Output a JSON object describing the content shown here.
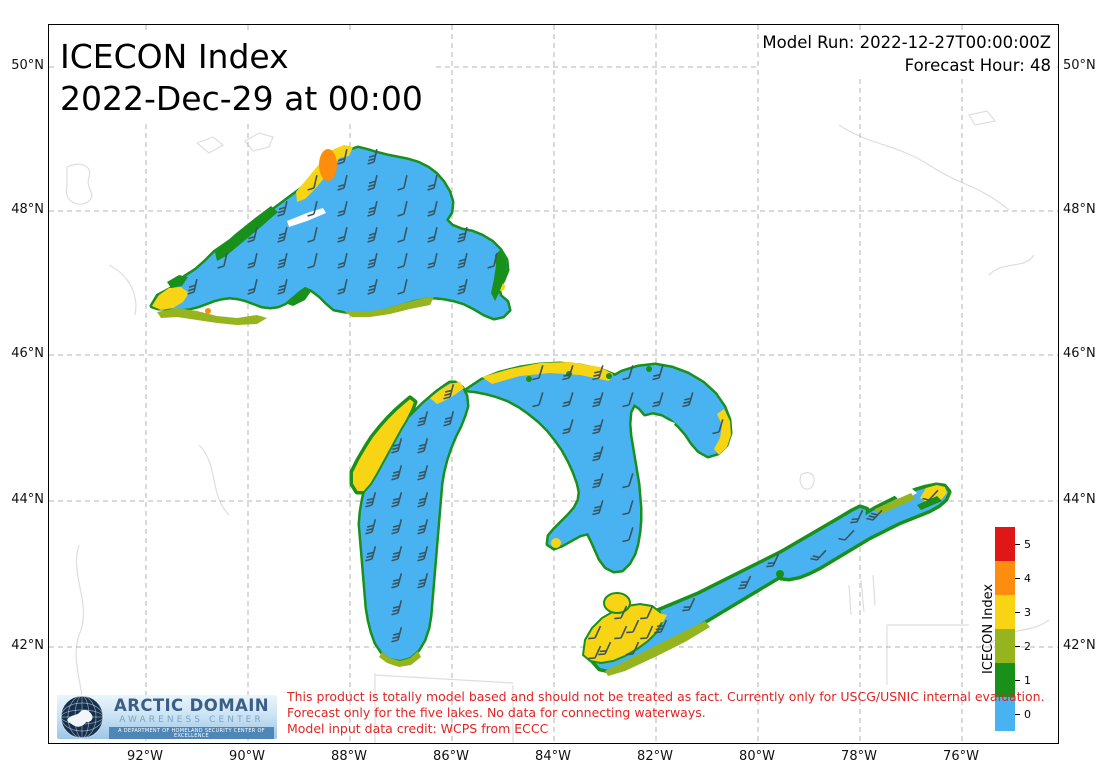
{
  "header": {
    "title_line1": "ICECON Index",
    "title_line2": "2022-Dec-29 at 00:00"
  },
  "model_info": {
    "model_run": "Model Run: 2022-12-27T00:00:00Z",
    "forecast_hour": "Forecast Hour: 48"
  },
  "axes": {
    "lat_labels": [
      "50°N",
      "48°N",
      "46°N",
      "44°N",
      "42°N"
    ],
    "lat_y": [
      42,
      186,
      330,
      476,
      622
    ],
    "lon_labels": [
      "92°W",
      "90°W",
      "88°W",
      "86°W",
      "84°W",
      "82°W",
      "80°W",
      "78°W",
      "76°W"
    ],
    "lon_x": [
      97,
      199,
      301,
      403,
      505,
      607,
      709,
      811,
      913
    ]
  },
  "colorbar": {
    "title": "ICECON Index",
    "tick_labels": [
      "5",
      "4",
      "3",
      "2",
      "1",
      "0"
    ],
    "colors_top_to_bottom": [
      "#e11717",
      "#fd8d0e",
      "#f7d414",
      "#96b41e",
      "#18901a",
      "#48b3f0"
    ]
  },
  "disclaimer": {
    "color": "#e22424",
    "line1": "This product is totally model based and should not be treated as fact. Currently only for USCG/USNIC internal evaluation.",
    "line2": "Forecast only for the five lakes. No data for connecting waterways.",
    "line3": "Model input data credit: WCPS from ECCC"
  },
  "logo": {
    "line1": "ARCTIC DOMAIN",
    "line2": "AWARENESS CENTER",
    "line3": "A DEPARTMENT OF HOMELAND SECURITY CENTER OF EXCELLENCE"
  },
  "map_style": {
    "water": "#48b3f0",
    "ice_green": "#18901a",
    "ice_olive": "#96b41e",
    "ice_yellow": "#f7d414",
    "ice_orange": "#fd8d0e",
    "ice_red": "#e11717",
    "barb": "#3a5560",
    "gridline": "#b5b5b5",
    "basemap_line": "#dedede",
    "land": "#ffffff"
  },
  "chart_data": {
    "type": "heatmap",
    "title": "ICECON Index 2022-Dec-29 at 00:00",
    "legend": {
      "title": "ICECON Index",
      "levels": [
        0,
        1,
        2,
        3,
        4,
        5
      ],
      "colors": [
        "#48b3f0",
        "#18901a",
        "#96b41e",
        "#f7d414",
        "#fd8d0e",
        "#e11717"
      ]
    },
    "x_ticks": [
      "92°W",
      "90°W",
      "88°W",
      "86°W",
      "84°W",
      "82°W",
      "80°W",
      "78°W",
      "76°W"
    ],
    "y_ticks": [
      "50°N",
      "48°N",
      "46°N",
      "44°N",
      "42°N"
    ],
    "annotations": [
      "Model Run: 2022-12-27T00:00:00Z",
      "Forecast Hour: 48"
    ],
    "overlay": "wind barbs over lake surfaces"
  }
}
